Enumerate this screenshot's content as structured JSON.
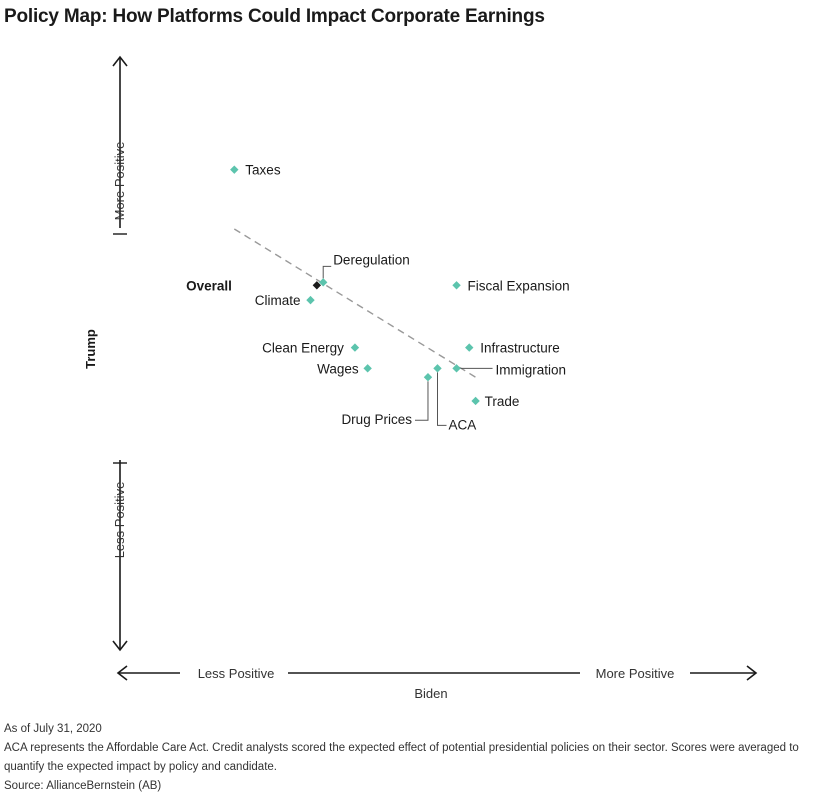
{
  "title": "Policy Map: How Platforms Could Impact Corporate Earnings",
  "chart_data": {
    "type": "scatter",
    "xlabel": "Biden",
    "ylabel": "Trump",
    "x_axis_labels": {
      "low": "Less Positive",
      "high": "More Positive"
    },
    "y_axis_labels": {
      "low": "Less Positive",
      "high": "More Positive"
    },
    "xlim": [
      0,
      100
    ],
    "ylim": [
      0,
      100
    ],
    "grid": false,
    "legend": "none",
    "points": [
      {
        "label": "Taxes",
        "x": 18,
        "y": 81,
        "color": "#5cc4ad"
      },
      {
        "label": "Deregulation",
        "x": 32,
        "y": 62,
        "color": "#5cc4ad"
      },
      {
        "label": "Overall",
        "x": 31,
        "y": 61.5,
        "color": "#1a1a1a",
        "bold": true
      },
      {
        "label": "Climate",
        "x": 30,
        "y": 59,
        "color": "#5cc4ad"
      },
      {
        "label": "Fiscal Expansion",
        "x": 53,
        "y": 61.5,
        "color": "#5cc4ad"
      },
      {
        "label": "Clean Energy",
        "x": 37,
        "y": 51,
        "color": "#5cc4ad"
      },
      {
        "label": "Wages",
        "x": 39,
        "y": 47.5,
        "color": "#5cc4ad"
      },
      {
        "label": "Infrastructure",
        "x": 55,
        "y": 51,
        "color": "#5cc4ad"
      },
      {
        "label": "Immigration",
        "x": 53,
        "y": 47.5,
        "color": "#5cc4ad"
      },
      {
        "label": "ACA",
        "x": 50,
        "y": 47.5,
        "color": "#5cc4ad"
      },
      {
        "label": "Drug Prices",
        "x": 48.5,
        "y": 46,
        "color": "#5cc4ad"
      },
      {
        "label": "Trade",
        "x": 56,
        "y": 42,
        "color": "#5cc4ad"
      }
    ],
    "trendline": {
      "x": [
        18,
        56
      ],
      "y": [
        71,
        46
      ],
      "style": "dashed",
      "color": "#999999"
    }
  },
  "footnotes": {
    "as_of": "As of July 31, 2020",
    "note": "ACA represents the Affordable Care Act. Credit analysts scored the expected effect of potential presidential policies on their sector. Scores were averaged to quantify the expected impact by policy and candidate.",
    "source": "Source: AllianceBernstein (AB)"
  }
}
